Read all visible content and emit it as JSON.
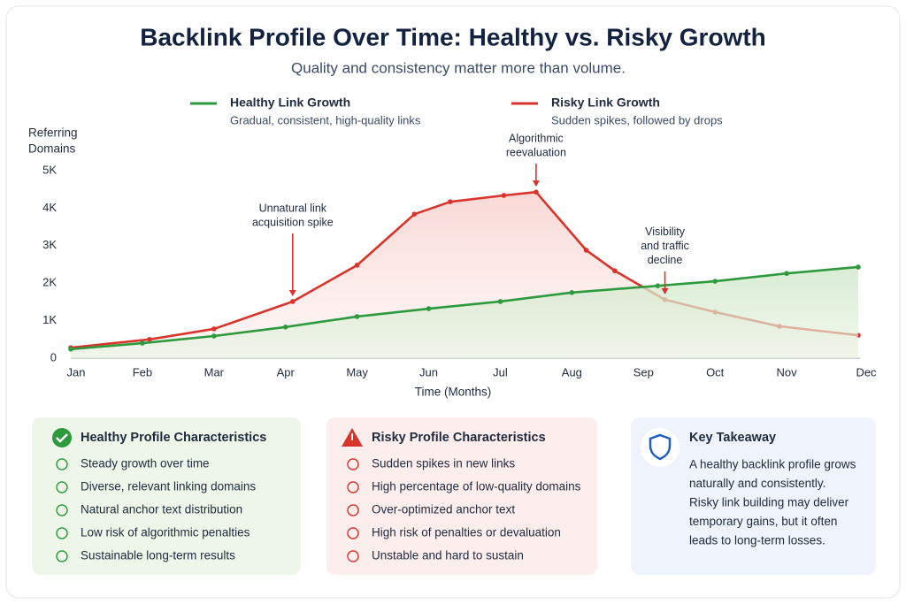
{
  "chart_data": {
    "type": "line",
    "title": "Backlink Profile Over Time: Healthy vs. Risky Growth",
    "subtitle": "Quality and consistency matter more than volume.",
    "x_label": "Time (Months)",
    "y_label": [
      "Referring",
      "Domains"
    ],
    "xlim": [
      1,
      12
    ],
    "xticks": [
      {
        "value": 1,
        "label": "Jan"
      },
      {
        "value": 2,
        "label": "Feb"
      },
      {
        "value": 3,
        "label": "Mar"
      },
      {
        "value": 4,
        "label": "Apr"
      },
      {
        "value": 5,
        "label": "May"
      },
      {
        "value": 6,
        "label": "Jun"
      },
      {
        "value": 7,
        "label": "Jul"
      },
      {
        "value": 8,
        "label": "Aug"
      },
      {
        "value": 9,
        "label": "Sep"
      },
      {
        "value": 10,
        "label": "Oct"
      },
      {
        "value": 11,
        "label": "Nov"
      },
      {
        "value": 12,
        "label": "Dec"
      }
    ],
    "ylim": [
      0,
      5000
    ],
    "yticks": [
      0,
      {
        "value": 1000,
        "label": "1K"
      },
      {
        "value": 2000,
        "label": "2K"
      },
      {
        "value": 3000,
        "label": "3K"
      },
      {
        "value": 4000,
        "label": "4K"
      },
      {
        "value": 5000,
        "label": "5K"
      }
    ],
    "grid": false,
    "series": [
      {
        "name": "Healthy Link Growth",
        "description": "Gradual, consistent, high-quality links",
        "color": "#2e9a3e",
        "x": [
          1,
          2,
          3,
          4,
          5,
          6,
          7,
          8,
          9.2,
          10,
          11,
          12
        ],
        "values": [
          240,
          400,
          590,
          830,
          1110,
          1320,
          1510,
          1750,
          1930,
          2050,
          2260,
          2430
        ]
      },
      {
        "name": "Risky Link Growth",
        "description": "Sudden spikes, followed by drops",
        "color": "#d9342b",
        "x": [
          1,
          2.1,
          3,
          4.1,
          5,
          5.8,
          6.3,
          7.05,
          7.5,
          8.2,
          8.6,
          9.3,
          10,
          10.9,
          12
        ],
        "values": [
          280,
          500,
          780,
          1510,
          2480,
          3840,
          4170,
          4340,
          4430,
          2880,
          2330,
          1560,
          1230,
          850,
          610
        ]
      }
    ],
    "annotations": [
      {
        "lines": [
          "Unnatural link",
          "acquisition spike"
        ],
        "x": 4.1,
        "y": 1510
      },
      {
        "lines": [
          "Algorithmic",
          "reevaluation"
        ],
        "x": 7.5,
        "y": 4430
      },
      {
        "lines": [
          "Visibility",
          "and traffic",
          "decline"
        ],
        "x": 9.3,
        "y": 1560
      }
    ]
  },
  "panels": [
    {
      "title": "Healthy Profile Characteristics",
      "items": [
        "Steady growth over time",
        "Diverse, relevant linking domains",
        "Natural anchor text distribution",
        "Low risk of algorithmic penalties",
        "Sustainable long-term results"
      ]
    },
    {
      "title": "Risky Profile Characteristics",
      "items": [
        "Sudden spikes in new links",
        "High percentage of low-quality domains",
        "Over-optimized anchor text",
        "High risk of penalties or devaluation",
        "Unstable and hard to sustain"
      ]
    },
    {
      "title": "Key Takeaway",
      "lines": [
        "A healthy backlink profile grows",
        "naturally and consistently.",
        "Risky link building may deliver",
        "temporary gains, but it often",
        "leads to long-term losses."
      ]
    }
  ]
}
